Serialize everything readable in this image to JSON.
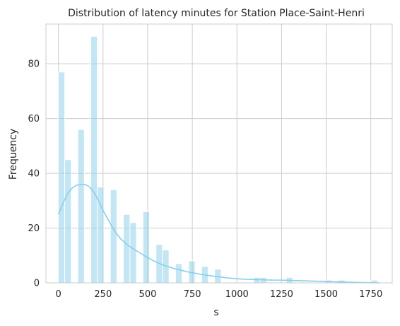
{
  "chart_data": {
    "type": "bar",
    "title": "Distribution of latency minutes for Station Place-Saint-Henri",
    "xlabel": "s",
    "ylabel": "Frequency",
    "xlim": [
      -70,
      1870
    ],
    "ylim": [
      0,
      94.5
    ],
    "xticks": [
      0,
      250,
      500,
      750,
      1000,
      1250,
      1500,
      1750
    ],
    "yticks": [
      0,
      20,
      40,
      60,
      80
    ],
    "grid": true,
    "bar_color": "#87ceeb",
    "bar_opacity": 0.5,
    "kde_color": "#87ceeb",
    "bins": {
      "start": -1,
      "width": 36.5,
      "counts": [
        77,
        45,
        0,
        56,
        0,
        90,
        35,
        0,
        34,
        0,
        25,
        22,
        0,
        26,
        0,
        14,
        12,
        0,
        7,
        0,
        8,
        0,
        6,
        0,
        5,
        0,
        0,
        0,
        0,
        0,
        2,
        2,
        0,
        0,
        0,
        2,
        0,
        0,
        0,
        0,
        0,
        1,
        0,
        1,
        0,
        0,
        0,
        0,
        1
      ]
    },
    "kde": {
      "x": [
        0,
        25,
        50,
        75,
        100,
        125,
        150,
        175,
        200,
        225,
        250,
        275,
        300,
        325,
        350,
        375,
        400,
        425,
        450,
        475,
        500,
        525,
        550,
        575,
        600,
        625,
        650,
        675,
        700,
        725,
        750,
        800,
        850,
        900,
        950,
        1000,
        1050,
        1100,
        1150,
        1200,
        1250,
        1300,
        1350,
        1400,
        1450,
        1500,
        1550,
        1600,
        1650,
        1700,
        1750,
        1800
      ],
      "y": [
        25,
        29,
        32.5,
        34.5,
        35.6,
        36,
        35.9,
        35,
        33,
        30,
        26.5,
        23.5,
        20.5,
        18,
        16,
        14.5,
        13.3,
        12.2,
        11.2,
        10.2,
        9.2,
        8.3,
        7.5,
        6.8,
        6.2,
        5.7,
        5.2,
        4.8,
        4.4,
        4.0,
        3.7,
        3.1,
        2.6,
        2.2,
        1.8,
        1.5,
        1.3,
        1.2,
        1.1,
        1.0,
        1.0,
        0.9,
        0.8,
        0.7,
        0.6,
        0.5,
        0.4,
        0.3,
        0.2,
        0.1,
        0.05,
        0.0
      ]
    }
  }
}
